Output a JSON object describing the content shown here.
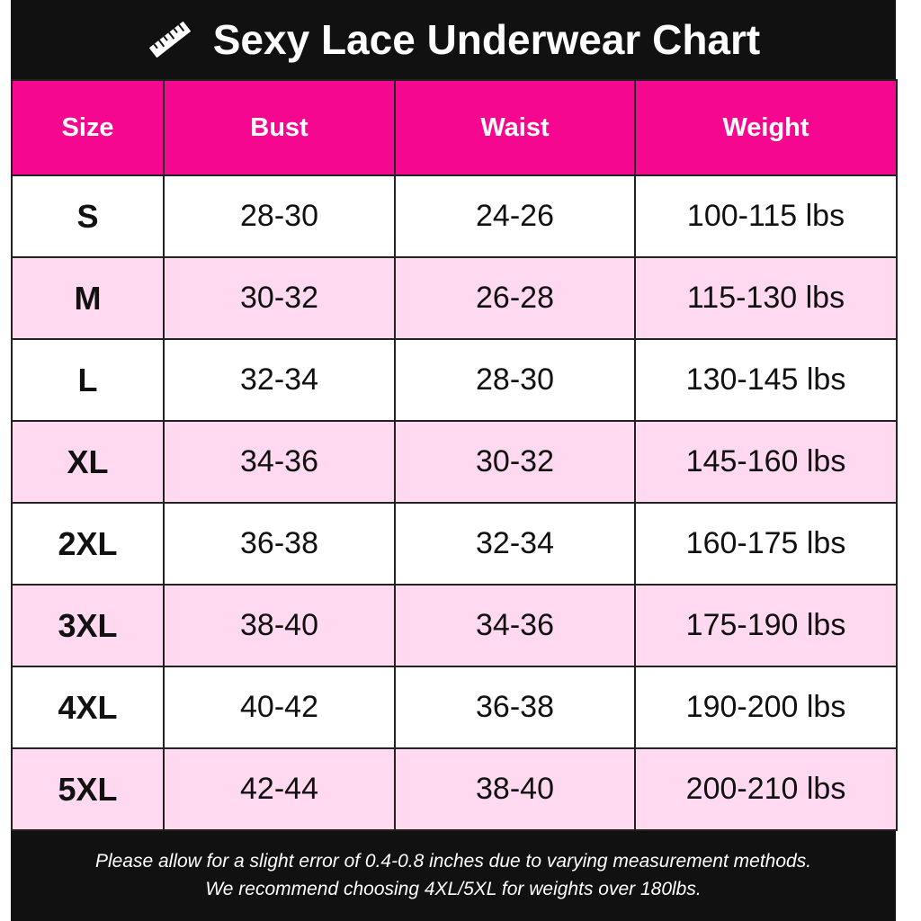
{
  "header": {
    "title": "Sexy Lace Underwear Chart"
  },
  "table": {
    "columns": [
      "Size",
      "Bust",
      "Waist",
      "Weight"
    ],
    "rows": [
      [
        "S",
        "28-30",
        "24-26",
        "100-115 lbs"
      ],
      [
        "M",
        "30-32",
        "26-28",
        "115-130 lbs"
      ],
      [
        "L",
        "32-34",
        "28-30",
        "130-145 lbs"
      ],
      [
        "XL",
        "34-36",
        "30-32",
        "145-160 lbs"
      ],
      [
        "2XL",
        "36-38",
        "32-34",
        "160-175 lbs"
      ],
      [
        "3XL",
        "38-40",
        "34-36",
        "175-190 lbs"
      ],
      [
        "4XL",
        "40-42",
        "36-38",
        "190-200 lbs"
      ],
      [
        "5XL",
        "42-44",
        "38-40",
        "200-210 lbs"
      ]
    ]
  },
  "footer": {
    "lines": [
      "Please allow for a slight error of 0.4-0.8 inches due to varying measurement methods.",
      "We recommend choosing 4XL/5XL for weights over 180lbs."
    ]
  }
}
